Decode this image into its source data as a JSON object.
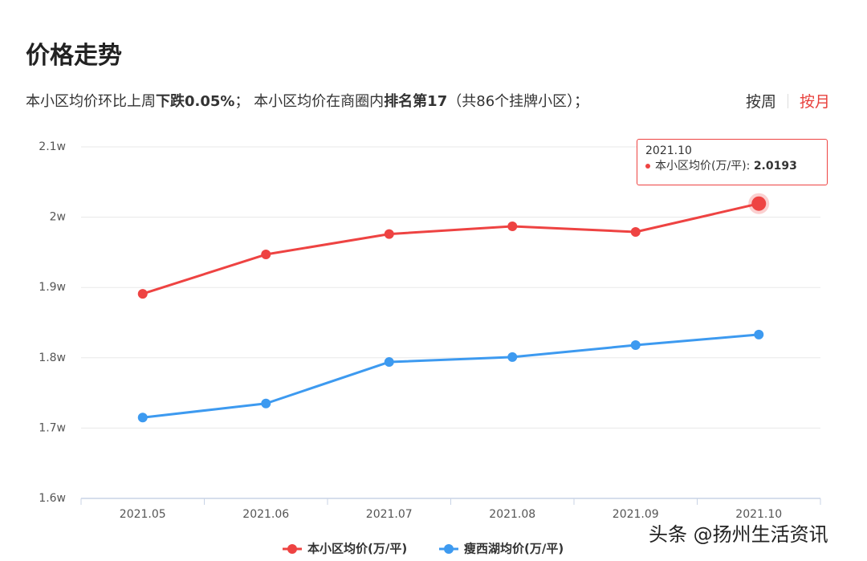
{
  "header": {
    "title": "价格走势",
    "summary": [
      "本小区均价环比上周",
      "下跌0.05%",
      "； 本小区均价在商圈内",
      "排名第17",
      "（共86个挂牌小区）；"
    ],
    "toggle": {
      "options": [
        "按周",
        "按月"
      ],
      "active": 1,
      "active_color": "#e8403c"
    }
  },
  "chart_data": {
    "type": "line",
    "categories": [
      "2021.05",
      "2021.06",
      "2021.07",
      "2021.08",
      "2021.09",
      "2021.10"
    ],
    "series": [
      {
        "name": "本小区均价(万/平)",
        "color": "#ee4342",
        "values": [
          1.891,
          1.947,
          1.976,
          1.987,
          1.979,
          2.0193
        ]
      },
      {
        "name": "瘦西湖均价(万/平)",
        "color": "#3d9af0",
        "values": [
          1.715,
          1.735,
          1.794,
          1.801,
          1.818,
          1.833
        ]
      }
    ],
    "ylim": [
      1.6,
      2.1
    ],
    "yticks": [
      {
        "value": 1.6,
        "label": "1.6w"
      },
      {
        "value": 1.7,
        "label": "1.7w"
      },
      {
        "value": 1.8,
        "label": "1.8w"
      },
      {
        "value": 1.9,
        "label": "1.9w"
      },
      {
        "value": 2,
        "label": "2w"
      },
      {
        "value": 2.1,
        "label": "2.1w"
      }
    ],
    "grid": true,
    "legend": "bottom",
    "tooltip": {
      "label": "本小区均价(万/平):"
    }
  },
  "watermark": "头条 @扬州生活资讯"
}
